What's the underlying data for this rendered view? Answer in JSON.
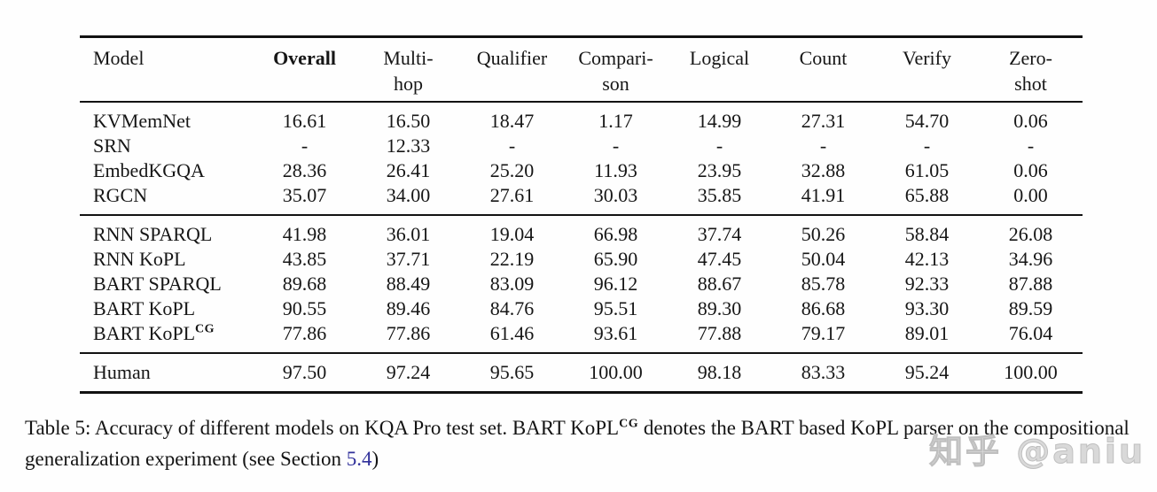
{
  "page": {
    "background": "#fefefe",
    "text_color": "#161616",
    "rule_color": "#121212",
    "link_color": "#30309a",
    "watermark_color": "#cbcbcb"
  },
  "table": {
    "headers": [
      {
        "line1": "Model",
        "line2": ""
      },
      {
        "line1": "Overall",
        "line2": ""
      },
      {
        "line1": "Multi-",
        "line2": "hop"
      },
      {
        "line1": "Qualifier",
        "line2": ""
      },
      {
        "line1": "Compari-",
        "line2": "son"
      },
      {
        "line1": "Logical",
        "line2": ""
      },
      {
        "line1": "Count",
        "line2": ""
      },
      {
        "line1": "Verify",
        "line2": ""
      },
      {
        "line1": "Zero-",
        "line2": "shot"
      }
    ],
    "group1": {
      "rows": [
        {
          "model": "KVMemNet",
          "model_sup": "",
          "values": [
            "16.61",
            "16.50",
            "18.47",
            "1.17",
            "14.99",
            "27.31",
            "54.70",
            "0.06"
          ]
        },
        {
          "model": "SRN",
          "model_sup": "",
          "values": [
            "-",
            "12.33",
            "-",
            "-",
            "-",
            "-",
            "-",
            "-"
          ]
        },
        {
          "model": "EmbedKGQA",
          "model_sup": "",
          "values": [
            "28.36",
            "26.41",
            "25.20",
            "11.93",
            "23.95",
            "32.88",
            "61.05",
            "0.06"
          ]
        },
        {
          "model": "RGCN",
          "model_sup": "",
          "values": [
            "35.07",
            "34.00",
            "27.61",
            "30.03",
            "35.85",
            "41.91",
            "65.88",
            "0.00"
          ]
        }
      ]
    },
    "group2": {
      "rows": [
        {
          "model": "RNN SPARQL",
          "model_sup": "",
          "values": [
            "41.98",
            "36.01",
            "19.04",
            "66.98",
            "37.74",
            "50.26",
            "58.84",
            "26.08"
          ]
        },
        {
          "model": "RNN KoPL",
          "model_sup": "",
          "values": [
            "43.85",
            "37.71",
            "22.19",
            "65.90",
            "47.45",
            "50.04",
            "42.13",
            "34.96"
          ]
        },
        {
          "model": "BART SPARQL",
          "model_sup": "",
          "values": [
            "89.68",
            "88.49",
            "83.09",
            "96.12",
            "88.67",
            "85.78",
            "92.33",
            "87.88"
          ]
        },
        {
          "model": "BART KoPL",
          "model_sup": "",
          "values": [
            "90.55",
            "89.46",
            "84.76",
            "95.51",
            "89.30",
            "86.68",
            "93.30",
            "89.59"
          ]
        },
        {
          "model": "BART KoPL",
          "model_sup": "CG",
          "values": [
            "77.86",
            "77.86",
            "61.46",
            "93.61",
            "77.88",
            "79.17",
            "89.01",
            "76.04"
          ]
        }
      ]
    },
    "group3": {
      "rows": [
        {
          "model": "Human",
          "model_sup": "",
          "values": [
            "97.50",
            "97.24",
            "95.65",
            "100.00",
            "98.18",
            "83.33",
            "95.24",
            "100.00"
          ]
        }
      ]
    }
  },
  "caption": {
    "prefix": "Table 5: Accuracy of different models on KQA Pro test set. BART KoPL",
    "sup": "CG",
    "middle": " denotes the BART based KoPL parser on the compositional generalization experiment (see Section ",
    "link": "5.4",
    "suffix": ")"
  },
  "watermark": {
    "text": "知乎 @aniu"
  }
}
